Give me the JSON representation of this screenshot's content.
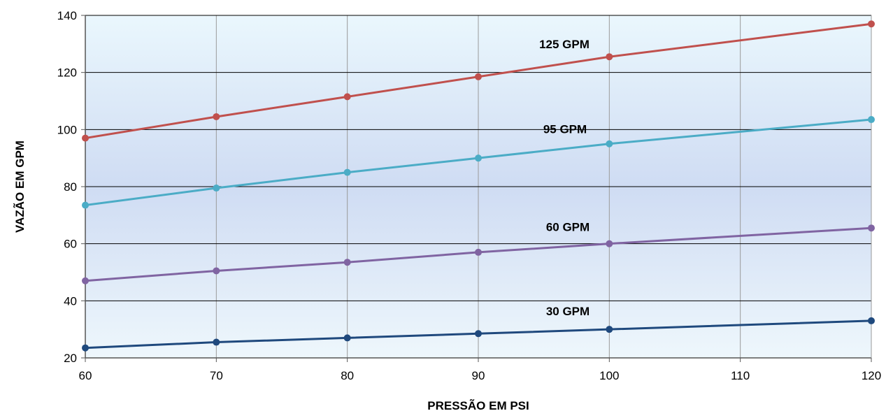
{
  "chart_data": {
    "type": "line",
    "title": "",
    "xlabel": "PRESSÃO EM PSI",
    "ylabel": "VAZÃO EM GPM",
    "xlim": [
      60,
      120
    ],
    "ylim": [
      20,
      140
    ],
    "x_ticks": [
      60,
      70,
      80,
      90,
      100,
      110,
      120
    ],
    "x_tick_labels": [
      "60",
      "70",
      "80",
      "90",
      "100",
      "110",
      "120"
    ],
    "y_ticks": [
      20,
      40,
      60,
      80,
      100,
      120,
      140
    ],
    "y_tick_labels": [
      "20",
      "40",
      "60",
      "80",
      "100",
      "120",
      "140"
    ],
    "grid": true,
    "legend": "none",
    "series": [
      {
        "name": "125 GPM",
        "color": "#c0504d",
        "x": [
          60,
          70,
          80,
          90,
          100,
          120
        ],
        "values": [
          97,
          104.5,
          111.5,
          118.5,
          125.5,
          137
        ]
      },
      {
        "name": "95 GPM",
        "color": "#4bacc6",
        "x": [
          60,
          70,
          80,
          90,
          100,
          120
        ],
        "values": [
          73.5,
          79.5,
          85,
          90,
          95,
          103.5
        ]
      },
      {
        "name": "60 GPM",
        "color": "#8064a2",
        "x": [
          60,
          70,
          80,
          90,
          100,
          120
        ],
        "values": [
          47,
          50.5,
          53.5,
          57,
          60,
          65.5
        ]
      },
      {
        "name": "30 GPM",
        "color": "#1f497d",
        "x": [
          60,
          70,
          80,
          90,
          100,
          120
        ],
        "values": [
          23.5,
          25.5,
          27,
          28.5,
          30,
          33
        ]
      }
    ]
  }
}
